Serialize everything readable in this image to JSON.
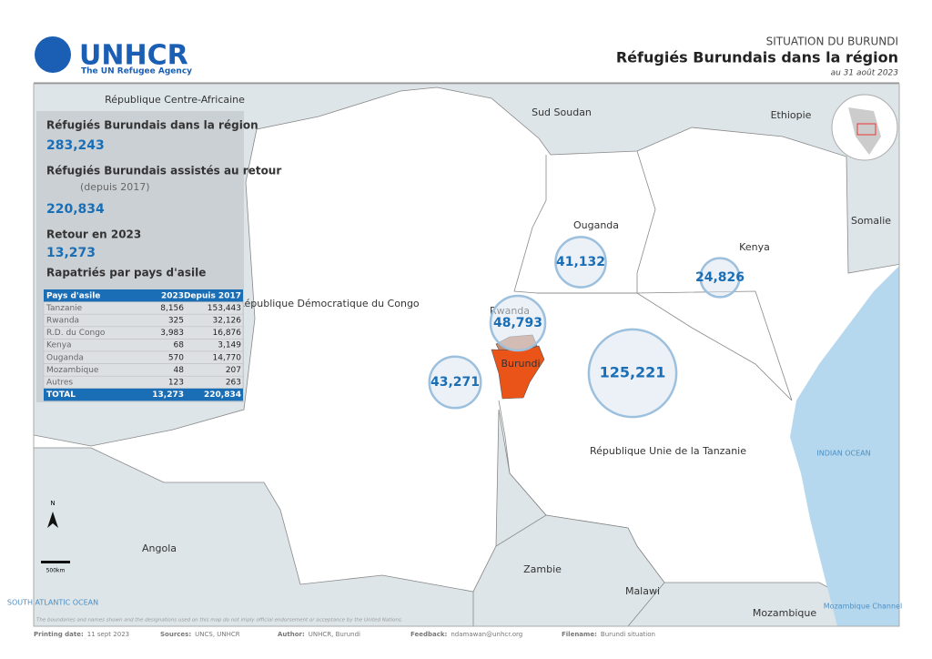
{
  "header": {
    "logo": "UNHCR",
    "tagline": "The UN Refugee Agency",
    "kicker": "SITUATION DU BURUNDI",
    "title": "Réfugiés Burundais dans la région",
    "date": "au 31 août 2023"
  },
  "countries": [
    "République Centre-Africaine",
    "Sud Soudan",
    "Ethiopie",
    "Somalie",
    "Ouganda",
    "Kenya",
    "République Démocratique du Congo",
    "Rwanda",
    "Burundi",
    "République Unie de la Tanzanie",
    "Angola",
    "Zambie",
    "Malawi",
    "Mozambique"
  ],
  "water": [
    "INDIAN OCEAN",
    "SOUTH ATLANTIC OCEAN",
    "Mozambique Channel"
  ],
  "bubbles": [
    {
      "value": 41132,
      "label": "41,132"
    },
    {
      "value": 24826,
      "label": "24,826"
    },
    {
      "value": 48793,
      "label": "48,793"
    },
    {
      "value": 43271,
      "label": "43,271"
    },
    {
      "value": 125221,
      "label": "125,221"
    }
  ],
  "panel": {
    "stat1_label": "Réfugiés Burundais dans la région",
    "stat1_value": "283,243",
    "stat2_label": "Réfugiés Burundais assistés au retour",
    "stat2_note": "(depuis 2017)",
    "stat2_value": "220,834",
    "stat3_label": "Retour en 2023",
    "stat3_value": "13,273",
    "table_title": "Rapatriés par pays d'asile",
    "table": {
      "header": [
        "Pays d'asile",
        "2023",
        "Depuis 2017"
      ],
      "rows": [
        [
          "Tanzanie",
          "8,156",
          "153,443"
        ],
        [
          "Rwanda",
          "325",
          "32,126"
        ],
        [
          "R.D. du Congo",
          "3,983",
          "16,876"
        ],
        [
          "Kenya",
          "68",
          "3,149"
        ],
        [
          "Ouganda",
          "570",
          "14,770"
        ],
        [
          "Mozambique",
          "48",
          "207"
        ],
        [
          "Autres",
          "123",
          "263"
        ]
      ],
      "total": [
        "TOTAL",
        "13,273",
        "220,834"
      ]
    }
  },
  "scale": {
    "north": "N",
    "bar": "500km"
  },
  "disclaimer": "The boundaries and names shown and the designations used on this map do not imply official endorsement or acceptance by the United Nations.",
  "footer": [
    {
      "label": "Printing date:",
      "value": "11 sept 2023"
    },
    {
      "label": "Sources:",
      "value": "UNCS, UNHCR"
    },
    {
      "label": "Author:",
      "value": "UNHCR, Burundi"
    },
    {
      "label": "Feedback:",
      "value": "ndamawan@unhcr.org"
    },
    {
      "label": "Filename:",
      "value": "Burundi situation"
    }
  ]
}
